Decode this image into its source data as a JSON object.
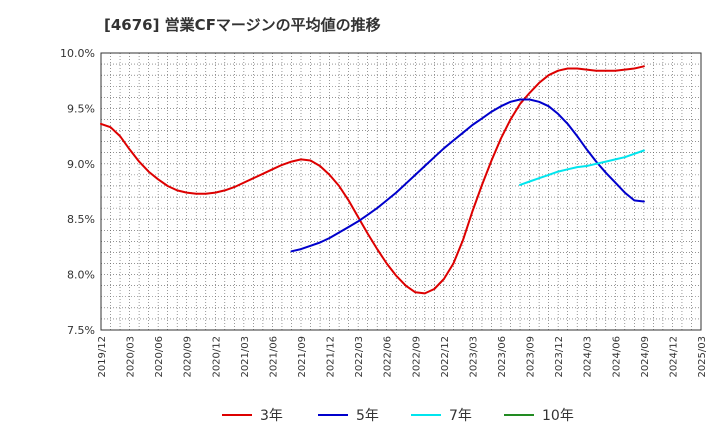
{
  "title": "[4676]  営業CFマージンの平均値の推移",
  "chart_data": {
    "type": "line",
    "title": "[4676]  営業CFマージンの平均値の推移",
    "xlabel": "",
    "ylabel": "",
    "ylim": [
      7.5,
      10.0
    ],
    "y_ticks": [
      "7.5%",
      "8.0%",
      "8.5%",
      "9.0%",
      "9.5%",
      "10.0%"
    ],
    "x_ticks": [
      "2019/12",
      "2020/03",
      "2020/06",
      "2020/09",
      "2020/12",
      "2021/03",
      "2021/06",
      "2021/09",
      "2021/12",
      "2022/03",
      "2022/06",
      "2022/09",
      "2022/12",
      "2023/03",
      "2023/06",
      "2023/09",
      "2023/12",
      "2024/03",
      "2024/06",
      "2024/09",
      "2024/12",
      "2025/03"
    ],
    "grid": true,
    "legend_position": "bottom",
    "series": [
      {
        "name": "3年",
        "color": "#dd0000",
        "x": [
          "2019/12",
          "2020/01",
          "2020/02",
          "2020/03",
          "2020/04",
          "2020/05",
          "2020/06",
          "2020/07",
          "2020/08",
          "2020/09",
          "2020/10",
          "2020/11",
          "2020/12",
          "2021/01",
          "2021/02",
          "2021/03",
          "2021/04",
          "2021/05",
          "2021/06",
          "2021/07",
          "2021/08",
          "2021/09",
          "2021/10",
          "2021/11",
          "2021/12",
          "2022/01",
          "2022/02",
          "2022/03",
          "2022/04",
          "2022/05",
          "2022/06",
          "2022/07",
          "2022/08",
          "2022/09",
          "2022/10",
          "2022/11",
          "2022/12",
          "2023/01",
          "2023/02",
          "2023/03",
          "2023/04",
          "2023/05",
          "2023/06",
          "2023/07",
          "2023/08",
          "2023/09",
          "2023/10",
          "2023/11",
          "2023/12",
          "2024/01",
          "2024/02",
          "2024/03",
          "2024/04",
          "2024/05",
          "2024/06",
          "2024/07",
          "2024/08",
          "2024/09"
        ],
        "values": [
          9.36,
          9.33,
          9.25,
          9.13,
          9.02,
          8.93,
          8.86,
          8.8,
          8.76,
          8.74,
          8.73,
          8.73,
          8.74,
          8.76,
          8.79,
          8.83,
          8.87,
          8.91,
          8.95,
          8.99,
          9.02,
          9.04,
          9.03,
          8.98,
          8.9,
          8.8,
          8.67,
          8.52,
          8.37,
          8.23,
          8.1,
          7.99,
          7.9,
          7.84,
          7.83,
          7.87,
          7.96,
          8.1,
          8.31,
          8.57,
          8.81,
          9.03,
          9.23,
          9.4,
          9.54,
          9.64,
          9.73,
          9.8,
          9.84,
          9.86,
          9.86,
          9.85,
          9.84,
          9.84,
          9.84,
          9.85,
          9.86,
          9.88
        ]
      },
      {
        "name": "5年",
        "color": "#0000cc",
        "x": [
          "2021/08",
          "2021/09",
          "2021/10",
          "2021/11",
          "2021/12",
          "2022/01",
          "2022/02",
          "2022/03",
          "2022/04",
          "2022/05",
          "2022/06",
          "2022/07",
          "2022/08",
          "2022/09",
          "2022/10",
          "2022/11",
          "2022/12",
          "2023/01",
          "2023/02",
          "2023/03",
          "2023/04",
          "2023/05",
          "2023/06",
          "2023/07",
          "2023/08",
          "2023/09",
          "2023/10",
          "2023/11",
          "2023/12",
          "2024/01",
          "2024/02",
          "2024/03",
          "2024/04",
          "2024/05",
          "2024/06",
          "2024/07",
          "2024/08",
          "2024/09"
        ],
        "values": [
          8.21,
          8.23,
          8.26,
          8.29,
          8.33,
          8.38,
          8.43,
          8.48,
          8.54,
          8.6,
          8.67,
          8.74,
          8.82,
          8.9,
          8.98,
          9.06,
          9.14,
          9.21,
          9.28,
          9.35,
          9.41,
          9.47,
          9.52,
          9.56,
          9.58,
          9.58,
          9.56,
          9.52,
          9.45,
          9.36,
          9.25,
          9.13,
          9.02,
          8.92,
          8.83,
          8.74,
          8.67,
          8.66
        ]
      },
      {
        "name": "7年",
        "color": "#00e5ee",
        "x": [
          "2023/08",
          "2023/09",
          "2023/10",
          "2023/11",
          "2023/12",
          "2024/01",
          "2024/02",
          "2024/03",
          "2024/04",
          "2024/05",
          "2024/06",
          "2024/07",
          "2024/08",
          "2024/09"
        ],
        "values": [
          8.81,
          8.84,
          8.87,
          8.9,
          8.93,
          8.95,
          8.97,
          8.98,
          9.0,
          9.02,
          9.04,
          9.06,
          9.09,
          9.12
        ]
      },
      {
        "name": "10年",
        "color": "#228b22",
        "x": [],
        "values": []
      }
    ]
  }
}
